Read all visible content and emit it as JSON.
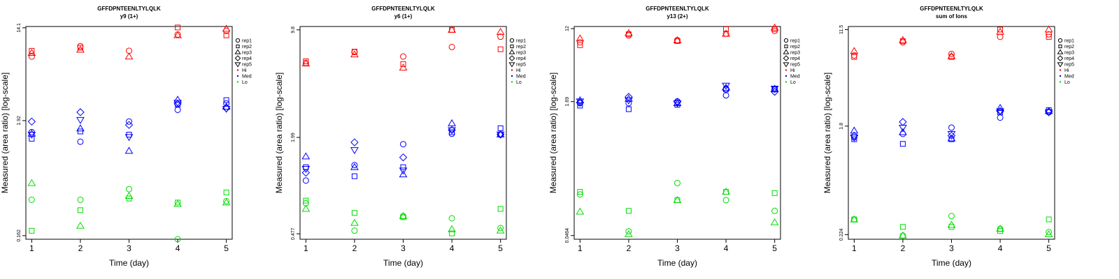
{
  "figure_title": "GFFDPNTEENLTYLQLK",
  "legend": {
    "reps": [
      {
        "label": "rep1",
        "marker": "circle"
      },
      {
        "label": "rep2",
        "marker": "square"
      },
      {
        "label": "rep3",
        "marker": "triangle-up"
      },
      {
        "label": "rep4",
        "marker": "diamond"
      },
      {
        "label": "rep5",
        "marker": "triangle-down"
      }
    ],
    "levels": [
      {
        "label": "Hi",
        "color": "#ff0000"
      },
      {
        "label": "Med",
        "color": "#0000ff"
      },
      {
        "label": "Lo",
        "color": "#00dd00"
      }
    ]
  },
  "chart_data": [
    {
      "type": "scatter",
      "title": "GFFDPNTEENLTYLQLK",
      "subtitle": "y9 (1+)",
      "xlabel": "Time (day)",
      "ylabel": "Measured (area ratio) [log-scale]",
      "x_ticks": [
        1,
        2,
        3,
        4,
        5
      ],
      "y_scale": "log",
      "y_ticks": [
        0.162,
        1.92,
        14.1
      ],
      "ylim": [
        0.15,
        14.5
      ],
      "xlim": [
        0.88,
        5.12
      ],
      "legend_position": "right",
      "series": [
        {
          "level": "Hi",
          "rep": "rep1",
          "x": [
            1,
            2,
            3,
            4,
            5
          ],
          "y": [
            7.6,
            9.5,
            8.6,
            12.2,
            13.2
          ]
        },
        {
          "level": "Hi",
          "rep": "rep2",
          "x": [
            1,
            2,
            3,
            4,
            5
          ],
          "y": [
            8.6,
            9.2,
            null,
            14.2,
            12.0
          ]
        },
        {
          "level": "Hi",
          "rep": "rep3",
          "x": [
            1,
            2,
            3,
            4,
            5
          ],
          "y": [
            8.2,
            8.8,
            7.6,
            12.0,
            13.8
          ]
        },
        {
          "level": "Med",
          "rep": "rep1",
          "x": [
            1,
            2,
            3,
            4,
            5
          ],
          "y": [
            1.5,
            1.22,
            1.88,
            2.42,
            2.78
          ]
        },
        {
          "level": "Med",
          "rep": "rep2",
          "x": [
            1,
            2,
            3,
            4,
            5
          ],
          "y": [
            1.3,
            1.52,
            1.42,
            2.72,
            2.98
          ]
        },
        {
          "level": "Med",
          "rep": "rep3",
          "x": [
            1,
            2,
            3,
            4,
            5
          ],
          "y": [
            1.45,
            1.62,
            1.0,
            3.0,
            2.58
          ]
        },
        {
          "level": "Med",
          "rep": "rep4",
          "x": [
            1,
            2,
            3,
            4,
            5
          ],
          "y": [
            1.88,
            2.3,
            1.75,
            2.75,
            2.5
          ]
        },
        {
          "level": "Med",
          "rep": "rep5",
          "x": [
            1,
            2,
            3,
            4,
            5
          ],
          "y": [
            1.42,
            1.95,
            1.35,
            2.82,
            2.48
          ]
        },
        {
          "level": "Lo",
          "rep": "rep1",
          "x": [
            1,
            2,
            3,
            4,
            5
          ],
          "y": [
            0.35,
            0.35,
            0.44,
            0.15,
            0.34
          ]
        },
        {
          "level": "Lo",
          "rep": "rep2",
          "x": [
            1,
            2,
            3,
            4,
            5
          ],
          "y": [
            0.18,
            0.28,
            0.36,
            0.33,
            0.41
          ]
        },
        {
          "level": "Lo",
          "rep": "rep3",
          "x": [
            1,
            2,
            3,
            4,
            5
          ],
          "y": [
            0.5,
            0.2,
            0.38,
            0.32,
            0.33
          ]
        }
      ]
    },
    {
      "type": "scatter",
      "title": "GFFDPNTEENLTYLQLK",
      "subtitle": "y6 (1+)",
      "xlabel": "Time (day)",
      "ylabel": "Measured (area ratio) [log-scale]",
      "x_ticks": [
        1,
        2,
        3,
        4,
        5
      ],
      "y_scale": "log",
      "y_ticks": [
        0.477,
        1.99,
        9.8
      ],
      "ylim": [
        0.44,
        10.3
      ],
      "xlim": [
        0.88,
        5.12
      ],
      "legend_position": "right",
      "series": [
        {
          "level": "Hi",
          "rep": "rep1",
          "x": [
            1,
            2,
            3,
            4,
            5
          ],
          "y": [
            6.0,
            7.05,
            6.6,
            7.6,
            8.85
          ]
        },
        {
          "level": "Hi",
          "rep": "rep2",
          "x": [
            1,
            2,
            3,
            4,
            5
          ],
          "y": [
            6.15,
            7.1,
            5.9,
            9.8,
            7.35
          ]
        },
        {
          "level": "Hi",
          "rep": "rep3",
          "x": [
            1,
            2,
            3,
            4,
            5
          ],
          "y": [
            5.95,
            6.8,
            5.6,
            9.8,
            9.5
          ]
        },
        {
          "level": "Med",
          "rep": "rep1",
          "x": [
            1,
            2,
            3,
            4,
            5
          ],
          "y": [
            1.05,
            1.32,
            1.8,
            2.1,
            2.07
          ]
        },
        {
          "level": "Med",
          "rep": "rep2",
          "x": [
            1,
            2,
            3,
            4,
            5
          ],
          "y": [
            1.28,
            1.12,
            1.28,
            2.15,
            2.28
          ]
        },
        {
          "level": "Med",
          "rep": "rep3",
          "x": [
            1,
            2,
            3,
            4,
            5
          ],
          "y": [
            1.5,
            1.28,
            1.15,
            2.45,
            2.08
          ]
        },
        {
          "level": "Med",
          "rep": "rep4",
          "x": [
            1,
            2,
            3,
            4,
            5
          ],
          "y": [
            1.18,
            1.85,
            1.48,
            2.22,
            2.08
          ]
        },
        {
          "level": "Med",
          "rep": "rep5",
          "x": [
            1,
            2,
            3,
            4,
            5
          ],
          "y": [
            1.25,
            1.65,
            1.22,
            2.22,
            2.08
          ]
        },
        {
          "level": "Lo",
          "rep": "rep1",
          "x": [
            1,
            2,
            3,
            4,
            5
          ],
          "y": [
            0.75,
            0.5,
            0.62,
            0.6,
            0.52
          ]
        },
        {
          "level": "Lo",
          "rep": "rep2",
          "x": [
            1,
            2,
            3,
            4,
            5
          ],
          "y": [
            0.78,
            0.65,
            0.61,
            0.48,
            0.69
          ]
        },
        {
          "level": "Lo",
          "rep": "rep3",
          "x": [
            1,
            2,
            3,
            4,
            5
          ],
          "y": [
            0.69,
            0.56,
            0.62,
            0.51,
            0.5
          ]
        }
      ]
    },
    {
      "type": "scatter",
      "title": "GFFDPNTEENLTYLQLK",
      "subtitle": "y13 (2+)",
      "xlabel": "Time (day)",
      "ylabel": "Measured (area ratio) [log-scale]",
      "x_ticks": [
        1,
        2,
        3,
        4,
        5
      ],
      "y_scale": "log",
      "y_ticks": [
        0.0464,
        1.69,
        12
      ],
      "ylim": [
        0.042,
        12.7
      ],
      "xlim": [
        0.88,
        5.12
      ],
      "legend_position": "right",
      "series": [
        {
          "level": "Hi",
          "rep": "rep1",
          "x": [
            1,
            2,
            3,
            4,
            5
          ],
          "y": [
            8.3,
            10.0,
            8.8,
            10.5,
            11.3
          ]
        },
        {
          "level": "Hi",
          "rep": "rep2",
          "x": [
            1,
            2,
            3,
            4,
            5
          ],
          "y": [
            7.7,
            10.3,
            8.6,
            11.8,
            11.8
          ]
        },
        {
          "level": "Hi",
          "rep": "rep3",
          "x": [
            1,
            2,
            3,
            4,
            5
          ],
          "y": [
            9.2,
            10.6,
            8.75,
            10.4,
            12.3
          ]
        },
        {
          "level": "Med",
          "rep": "rep1",
          "x": [
            1,
            2,
            3,
            4,
            5
          ],
          "y": [
            1.62,
            1.62,
            1.7,
            2.0,
            2.35
          ]
        },
        {
          "level": "Med",
          "rep": "rep2",
          "x": [
            1,
            2,
            3,
            4,
            5
          ],
          "y": [
            1.52,
            1.38,
            1.55,
            2.35,
            2.35
          ]
        },
        {
          "level": "Med",
          "rep": "rep3",
          "x": [
            1,
            2,
            3,
            4,
            5
          ],
          "y": [
            1.75,
            1.82,
            1.62,
            2.45,
            2.38
          ]
        },
        {
          "level": "Med",
          "rep": "rep4",
          "x": [
            1,
            2,
            3,
            4,
            5
          ],
          "y": [
            1.65,
            1.92,
            1.68,
            2.35,
            2.2
          ]
        },
        {
          "level": "Med",
          "rep": "rep5",
          "x": [
            1,
            2,
            3,
            4,
            5
          ],
          "y": [
            1.7,
            1.75,
            1.62,
            2.6,
            2.4
          ]
        },
        {
          "level": "Lo",
          "rep": "rep1",
          "x": [
            1,
            2,
            3,
            4,
            5
          ],
          "y": [
            0.14,
            0.052,
            0.19,
            0.12,
            0.09
          ]
        },
        {
          "level": "Lo",
          "rep": "rep2",
          "x": [
            1,
            2,
            3,
            4,
            5
          ],
          "y": [
            0.15,
            0.09,
            0.12,
            0.15,
            0.145
          ]
        },
        {
          "level": "Lo",
          "rep": "rep3",
          "x": [
            1,
            2,
            3,
            4,
            5
          ],
          "y": [
            0.088,
            0.048,
            0.12,
            0.15,
            0.066
          ]
        }
      ]
    },
    {
      "type": "scatter",
      "title": "GFFDPNTEENLTYLQLK",
      "subtitle": "sum of Ions",
      "xlabel": "Time (day)",
      "ylabel": "Measured (area ratio) [log-scale]",
      "x_ticks": [
        1,
        2,
        3,
        4,
        5
      ],
      "y_scale": "log",
      "y_ticks": [
        0.224,
        1.8,
        11.5
      ],
      "ylim": [
        0.205,
        12.2
      ],
      "xlim": [
        0.88,
        5.12
      ],
      "legend_position": "right",
      "series": [
        {
          "level": "Hi",
          "rep": "rep1",
          "x": [
            1,
            2,
            3,
            4,
            5
          ],
          "y": [
            7.0,
            9.0,
            7.2,
            10.0,
            10.5
          ]
        },
        {
          "level": "Hi",
          "rep": "rep2",
          "x": [
            1,
            2,
            3,
            4,
            5
          ],
          "y": [
            6.8,
            9.2,
            6.8,
            11.5,
            10.0
          ]
        },
        {
          "level": "Hi",
          "rep": "rep3",
          "x": [
            1,
            2,
            3,
            4,
            5
          ],
          "y": [
            7.6,
            9.4,
            6.9,
            11.0,
            11.5
          ]
        },
        {
          "level": "Med",
          "rep": "rep1",
          "x": [
            1,
            2,
            3,
            4,
            5
          ],
          "y": [
            1.45,
            1.55,
            1.75,
            2.12,
            2.35
          ]
        },
        {
          "level": "Med",
          "rep": "rep2",
          "x": [
            1,
            2,
            3,
            4,
            5
          ],
          "y": [
            1.4,
            1.28,
            1.4,
            2.35,
            2.45
          ]
        },
        {
          "level": "Med",
          "rep": "rep3",
          "x": [
            1,
            2,
            3,
            4,
            5
          ],
          "y": [
            1.65,
            1.6,
            1.42,
            2.55,
            2.4
          ]
        },
        {
          "level": "Med",
          "rep": "rep4",
          "x": [
            1,
            2,
            3,
            4,
            5
          ],
          "y": [
            1.5,
            1.95,
            1.5,
            2.4,
            2.38
          ]
        },
        {
          "level": "Med",
          "rep": "rep5",
          "x": [
            1,
            2,
            3,
            4,
            5
          ],
          "y": [
            1.45,
            1.75,
            1.55,
            2.4,
            2.35
          ]
        },
        {
          "level": "Lo",
          "rep": "rep1",
          "x": [
            1,
            2,
            3,
            4,
            5
          ],
          "y": [
            0.3,
            0.22,
            0.32,
            0.25,
            0.235
          ]
        },
        {
          "level": "Lo",
          "rep": "rep2",
          "x": [
            1,
            2,
            3,
            4,
            5
          ],
          "y": [
            0.3,
            0.26,
            0.26,
            0.24,
            0.3
          ]
        },
        {
          "level": "Lo",
          "rep": "rep3",
          "x": [
            1,
            2,
            3,
            4,
            5
          ],
          "y": [
            0.3,
            0.22,
            0.27,
            0.25,
            0.225
          ]
        }
      ]
    }
  ]
}
